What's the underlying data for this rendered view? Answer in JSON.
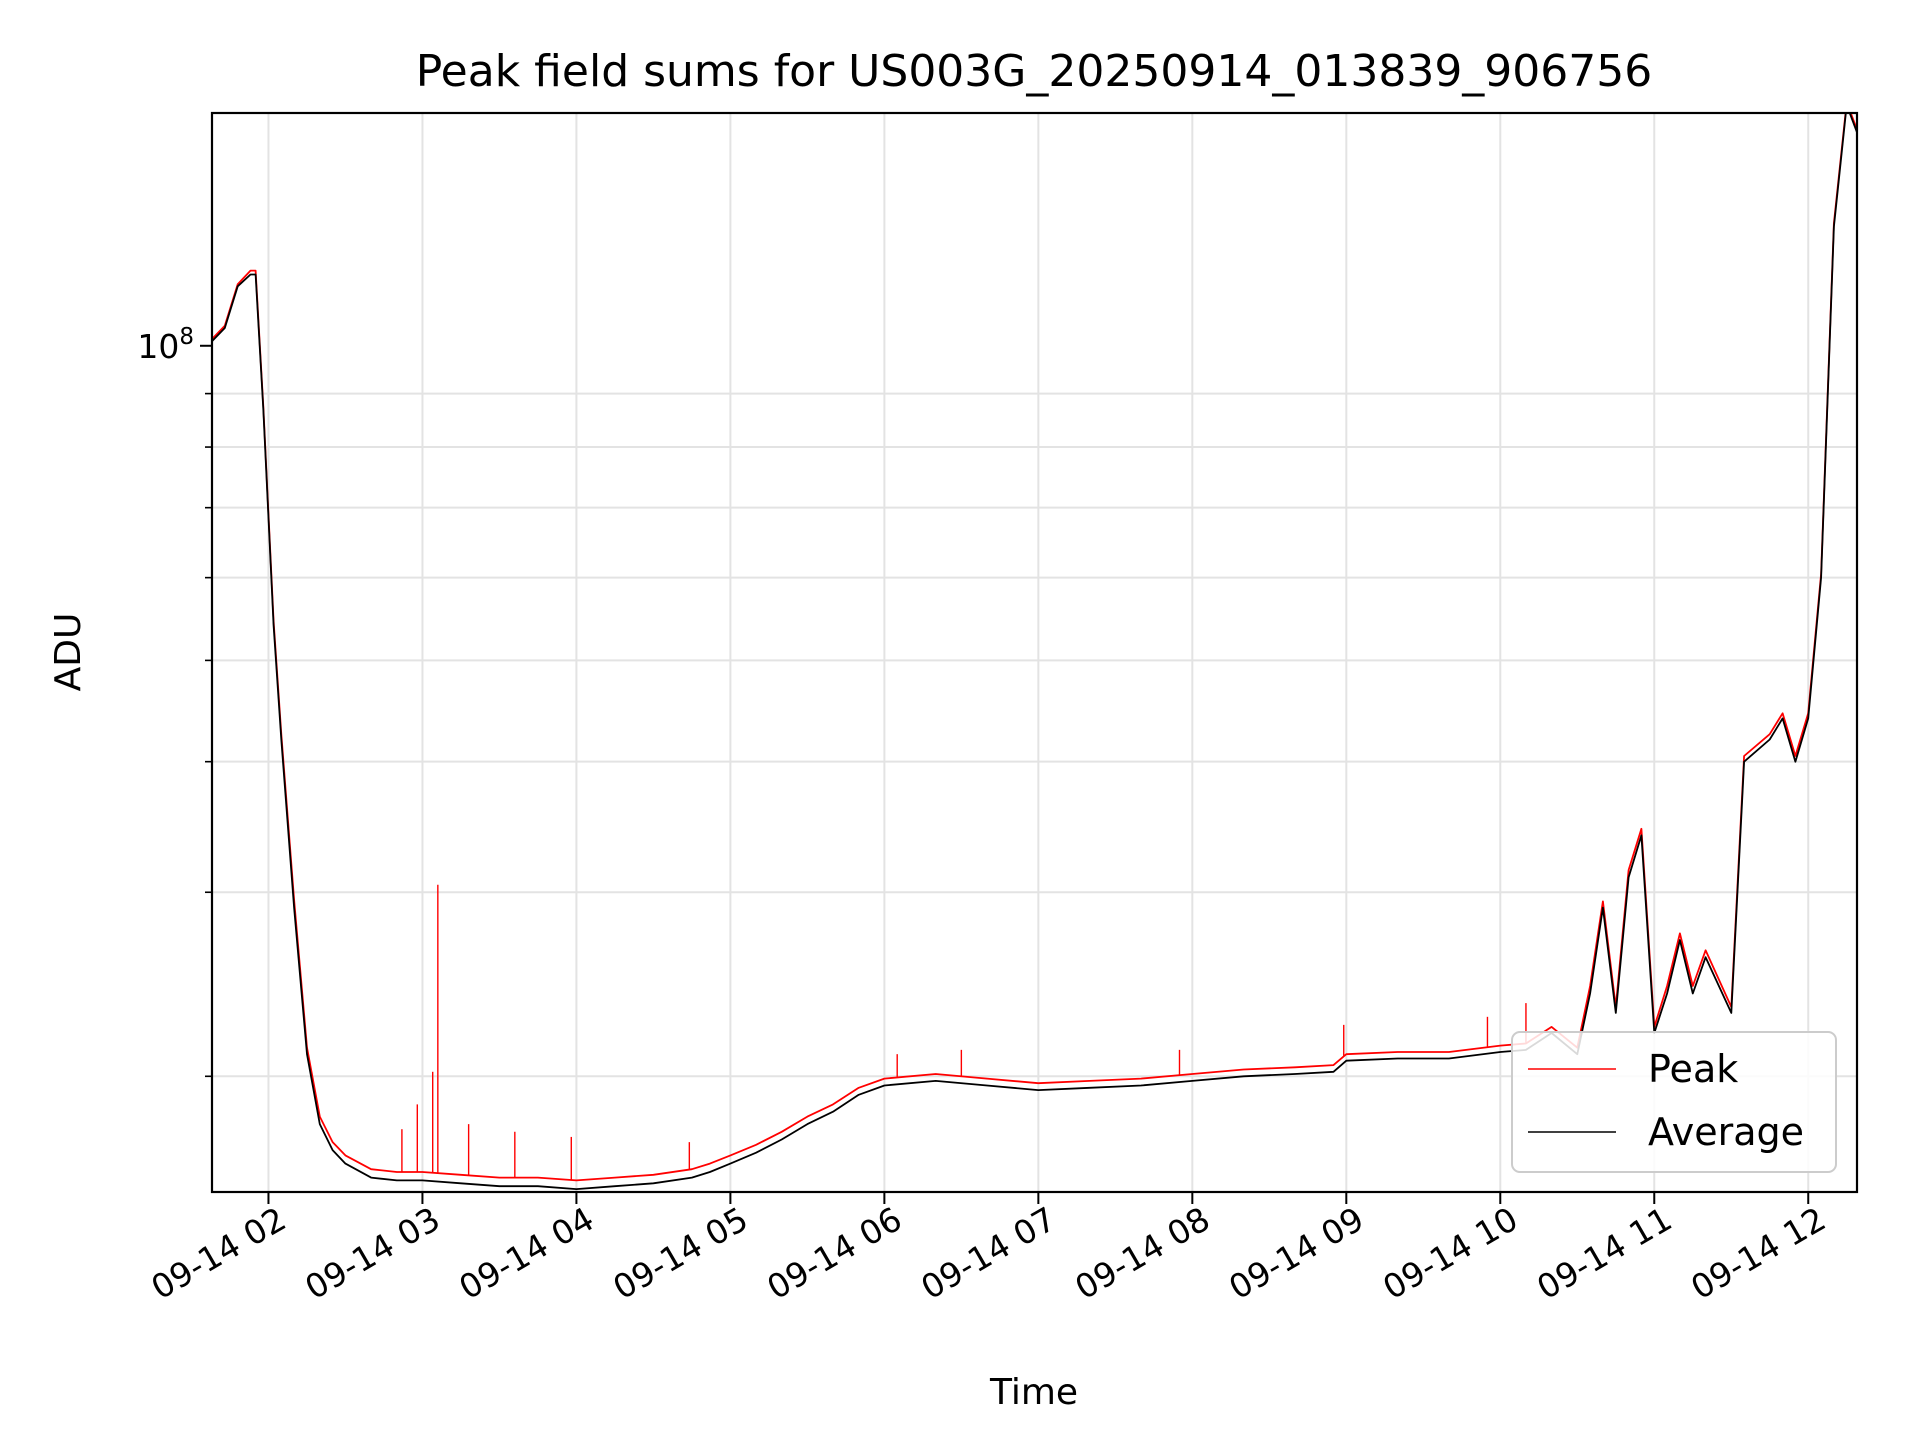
{
  "chart_data": {
    "type": "line",
    "title": "Peak field sums for US003G_20250914_013839_906756",
    "xlabel": "Time",
    "ylabel": "ADU",
    "yscale": "log",
    "ylim": [
      15500000,
      167000000
    ],
    "y_major_tick": {
      "value": 100000000,
      "base": "10",
      "exp": "8"
    },
    "y_minor_ticks": [
      20000000,
      30000000,
      40000000,
      50000000,
      60000000,
      70000000,
      80000000,
      90000000
    ],
    "x_range": [
      "09-14 01:38",
      "09-14 12:19"
    ],
    "x_ticks": [
      "09-14 02",
      "09-14 03",
      "09-14 04",
      "09-14 05",
      "09-14 06",
      "09-14 07",
      "09-14 08",
      "09-14 09",
      "09-14 10",
      "09-14 11",
      "09-14 12"
    ],
    "grid": true,
    "legend_position": "lower-right",
    "colors": {
      "Peak": "#ff0000",
      "Average": "#000000"
    },
    "series": [
      {
        "name": "Average",
        "x": [
          "01:38",
          "01:43",
          "01:48",
          "01:53",
          "01:55",
          "01:58",
          "02:02",
          "02:05",
          "02:10",
          "02:15",
          "02:20",
          "02:25",
          "02:30",
          "02:40",
          "02:50",
          "03:00",
          "03:15",
          "03:30",
          "03:45",
          "04:00",
          "04:15",
          "04:30",
          "04:45",
          "04:52",
          "05:00",
          "05:10",
          "05:20",
          "05:30",
          "05:40",
          "05:50",
          "06:00",
          "06:20",
          "06:40",
          "07:00",
          "07:20",
          "07:40",
          "08:00",
          "08:20",
          "08:40",
          "08:55",
          "09:00",
          "09:20",
          "09:40",
          "10:00",
          "10:10",
          "10:20",
          "10:30",
          "10:35",
          "10:40",
          "10:45",
          "10:50",
          "10:55",
          "11:00",
          "11:05",
          "11:10",
          "11:15",
          "11:20",
          "11:30",
          "11:35",
          "11:45",
          "11:50",
          "11:55",
          "12:00",
          "12:05",
          "12:10",
          "12:15",
          "12:19"
        ],
        "y": [
          101000000,
          104000000,
          114000000,
          117000000,
          117000000,
          87000000,
          54000000,
          42000000,
          29000000,
          21000000,
          18000000,
          17000000,
          16500000,
          16000000,
          15900000,
          15900000,
          15800000,
          15700000,
          15700000,
          15600000,
          15700000,
          15800000,
          16000000,
          16200000,
          16500000,
          16900000,
          17400000,
          18000000,
          18500000,
          19200000,
          19600000,
          19800000,
          19600000,
          19400000,
          19500000,
          19600000,
          19800000,
          20000000,
          20100000,
          20200000,
          20700000,
          20800000,
          20800000,
          21100000,
          21200000,
          22000000,
          21000000,
          24000000,
          29000000,
          23000000,
          31000000,
          34000000,
          22000000,
          24000000,
          27000000,
          24000000,
          26000000,
          23000000,
          40000000,
          42000000,
          44000000,
          40000000,
          44000000,
          60000000,
          130000000,
          170000000,
          160000000
        ]
      },
      {
        "name": "Peak",
        "x": [
          "01:38",
          "01:43",
          "01:48",
          "01:53",
          "01:55",
          "01:58",
          "02:02",
          "02:05",
          "02:10",
          "02:15",
          "02:20",
          "02:25",
          "02:30",
          "02:40",
          "02:50",
          "03:00",
          "03:15",
          "03:30",
          "03:45",
          "04:00",
          "04:15",
          "04:30",
          "04:45",
          "04:52",
          "05:00",
          "05:10",
          "05:20",
          "05:30",
          "05:40",
          "05:50",
          "06:00",
          "06:20",
          "06:40",
          "07:00",
          "07:20",
          "07:40",
          "08:00",
          "08:20",
          "08:40",
          "08:55",
          "09:00",
          "09:20",
          "09:40",
          "10:00",
          "10:10",
          "10:20",
          "10:30",
          "10:35",
          "10:40",
          "10:45",
          "10:50",
          "10:55",
          "11:00",
          "11:05",
          "11:10",
          "11:15",
          "11:20",
          "11:30",
          "11:35",
          "11:45",
          "11:50",
          "11:55",
          "12:00",
          "12:05",
          "12:10",
          "12:15",
          "12:19"
        ],
        "y": [
          101500000,
          104500000,
          114500000,
          118000000,
          118000000,
          87500000,
          54500000,
          42500000,
          29500000,
          21300000,
          18300000,
          17300000,
          16800000,
          16300000,
          16200000,
          16200000,
          16100000,
          16000000,
          16000000,
          15900000,
          16000000,
          16100000,
          16300000,
          16500000,
          16800000,
          17200000,
          17700000,
          18300000,
          18800000,
          19500000,
          19900000,
          20100000,
          19900000,
          19700000,
          19800000,
          19900000,
          20100000,
          20300000,
          20400000,
          20500000,
          21000000,
          21100000,
          21100000,
          21400000,
          21500000,
          22300000,
          21300000,
          24400000,
          29400000,
          23300000,
          31500000,
          34500000,
          22300000,
          24400000,
          27400000,
          24400000,
          26400000,
          23300000,
          40500000,
          42500000,
          44500000,
          40500000,
          44500000,
          60500000,
          131000000,
          171000000,
          161000000
        ],
        "spikes": [
          {
            "x": "02:52",
            "y": 17800000
          },
          {
            "x": "02:58",
            "y": 18800000
          },
          {
            "x": "03:04",
            "y": 20200000
          },
          {
            "x": "03:06",
            "y": 30500000
          },
          {
            "x": "03:18",
            "y": 18000000
          },
          {
            "x": "03:36",
            "y": 17700000
          },
          {
            "x": "03:58",
            "y": 17500000
          },
          {
            "x": "04:44",
            "y": 17300000
          },
          {
            "x": "06:05",
            "y": 21000000
          },
          {
            "x": "06:30",
            "y": 21200000
          },
          {
            "x": "07:55",
            "y": 21200000
          },
          {
            "x": "08:59",
            "y": 22400000
          },
          {
            "x": "09:55",
            "y": 22800000
          },
          {
            "x": "10:10",
            "y": 23500000
          }
        ]
      }
    ]
  }
}
